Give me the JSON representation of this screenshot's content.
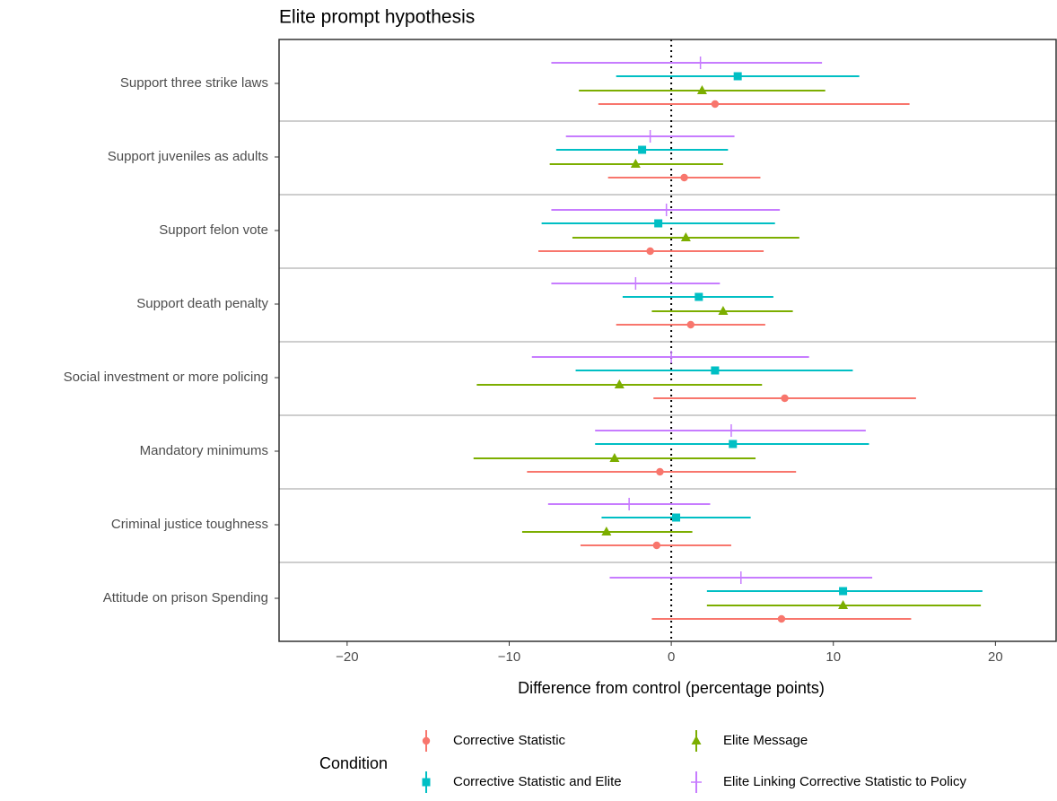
{
  "chart_data": {
    "type": "interval",
    "title": "Elite prompt hypothesis",
    "xlabel": "Difference from control (percentage points)",
    "legend_title": "Condition",
    "categories": [
      "Support three strike laws",
      "Support juveniles as adults",
      "Support felon vote",
      "Support death penalty",
      "Social investment or more policing",
      "Mandatory minimums",
      "Criminal justice toughness",
      "Attitude on prison Spending"
    ],
    "xlim": [
      -24.2,
      23.8
    ],
    "xticks": [
      {
        "value": -20,
        "label": "−20"
      },
      {
        "value": -10,
        "label": "−10"
      },
      0,
      10,
      20
    ],
    "reference_line": 0,
    "series": [
      {
        "name": "Corrective Statistic",
        "color": "#F8766D",
        "shape": "circle",
        "values": [
          2.7,
          0.8,
          -1.3,
          1.2,
          7.0,
          -0.7,
          -0.9,
          6.8
        ],
        "lower": [
          -4.5,
          -3.9,
          -8.2,
          -3.4,
          -1.1,
          -8.9,
          -5.6,
          -1.2
        ],
        "upper": [
          14.7,
          5.5,
          5.7,
          5.8,
          15.1,
          7.7,
          3.7,
          14.8
        ]
      },
      {
        "name": "Corrective Statistic and Elite",
        "color": "#00BFC4",
        "shape": "square",
        "values": [
          4.1,
          -1.8,
          -0.8,
          1.7,
          2.7,
          3.8,
          0.3,
          10.6
        ],
        "lower": [
          -3.4,
          -7.1,
          -8.0,
          -3.0,
          -5.9,
          -4.7,
          -4.3,
          2.2
        ],
        "upper": [
          11.6,
          3.5,
          6.4,
          6.3,
          11.2,
          12.2,
          4.9,
          19.2
        ]
      },
      {
        "name": "Elite Message",
        "color": "#7CAE00",
        "shape": "triangle",
        "values": [
          1.9,
          -2.2,
          0.9,
          3.2,
          -3.2,
          -3.5,
          -4.0,
          10.6
        ],
        "lower": [
          -5.7,
          -7.5,
          -6.1,
          -1.2,
          -12.0,
          -12.2,
          -9.2,
          2.2
        ],
        "upper": [
          9.5,
          3.2,
          7.9,
          7.5,
          5.6,
          5.2,
          1.3,
          19.1
        ]
      },
      {
        "name": "Elite Linking Corrective Statistic to Policy",
        "color": "#C77CFF",
        "shape": "plus",
        "values": [
          1.8,
          -1.3,
          -0.3,
          -2.2,
          0.0,
          3.7,
          -2.6,
          4.3
        ],
        "lower": [
          -7.4,
          -6.5,
          -7.4,
          -7.4,
          -8.6,
          -4.7,
          -7.6,
          -3.8
        ],
        "upper": [
          9.3,
          3.9,
          6.7,
          3.0,
          8.5,
          12.0,
          2.4,
          12.4
        ]
      }
    ]
  }
}
